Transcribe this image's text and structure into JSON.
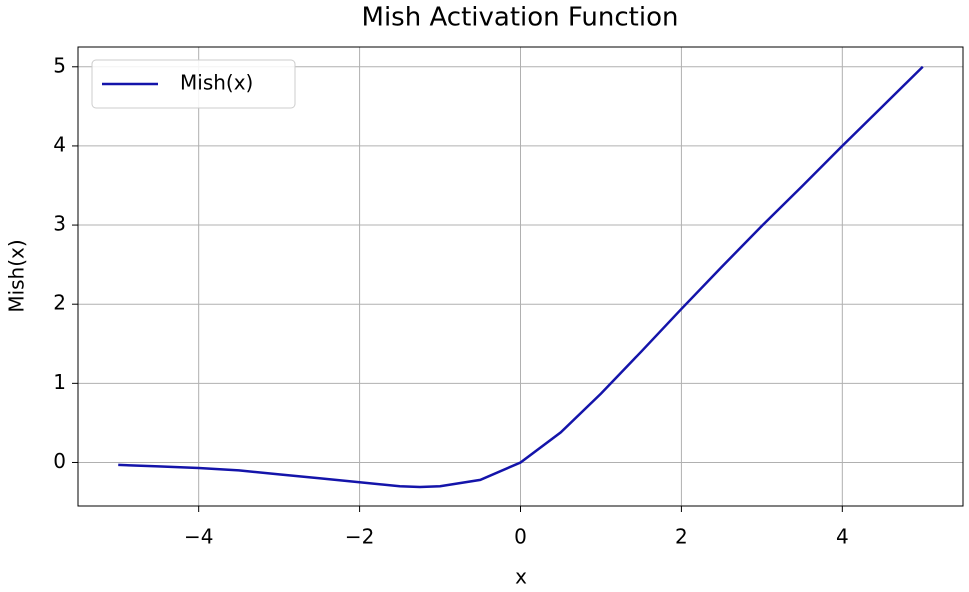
{
  "chart_data": {
    "type": "line",
    "title": "Mish Activation Function",
    "x_label": "x",
    "y_label": "Mish(x)",
    "x": [
      -5,
      -4.5,
      -4,
      -3.5,
      -3,
      -2.5,
      -2,
      -1.5,
      -1.25,
      -1,
      -0.5,
      0,
      0.5,
      1,
      1.5,
      2,
      2.5,
      3,
      3.5,
      4,
      4.5,
      5
    ],
    "series": [
      {
        "name": "Mish(x)",
        "color": "#1414aa",
        "values": [
          -0.03,
          -0.05,
          -0.07,
          -0.1,
          -0.15,
          -0.2,
          -0.25,
          -0.3,
          -0.31,
          -0.3,
          -0.22,
          0,
          0.38,
          0.87,
          1.4,
          1.94,
          2.47,
          2.99,
          3.49,
          4.0,
          4.5,
          5.0
        ]
      }
    ],
    "xlim": [
      -5.5,
      5.5
    ],
    "ylim": [
      -0.55,
      5.25
    ],
    "xticks": [
      {
        "value": -4,
        "label": "−4"
      },
      {
        "value": -2,
        "label": "−2"
      },
      0,
      2,
      4
    ],
    "yticks": [
      0,
      1,
      2,
      3,
      4,
      5
    ],
    "grid": true,
    "legend": "upper-left"
  }
}
